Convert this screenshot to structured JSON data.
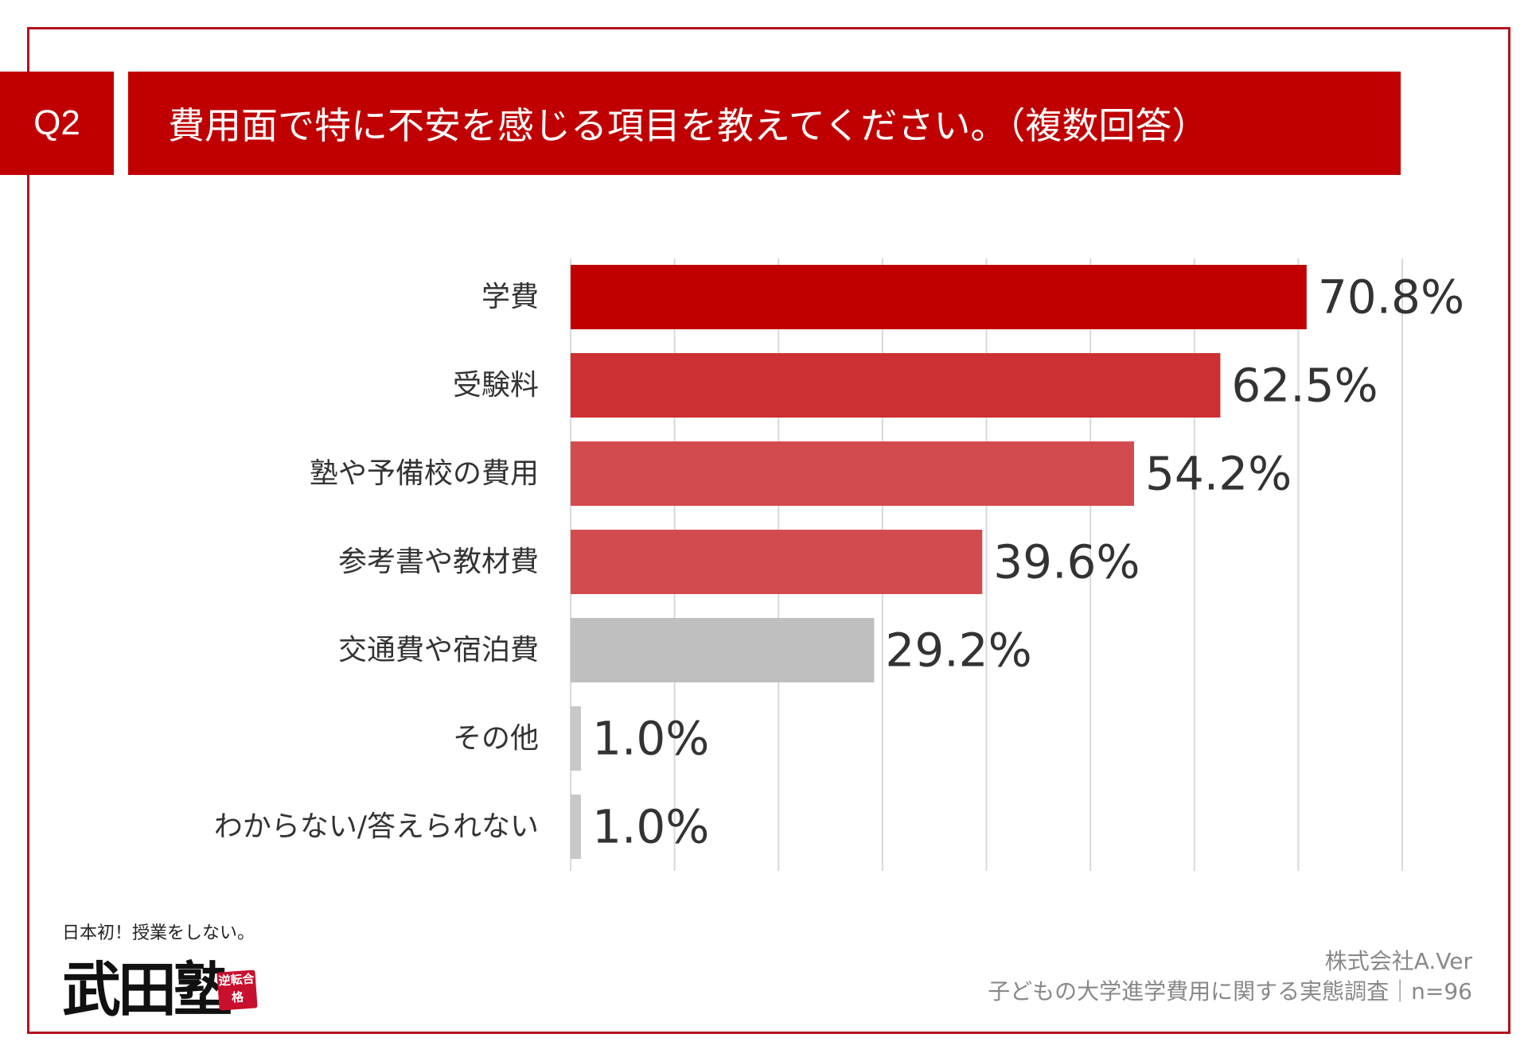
{
  "header": {
    "badge": "Q2",
    "title": "費用面で特に不安を感じる項目を教えてください。（複数回答）"
  },
  "colors": {
    "accent": "#c00000",
    "frame": "#b5121b",
    "grid": "#d9d9d9"
  },
  "chart_data": {
    "type": "bar",
    "orientation": "horizontal",
    "categories": [
      "学費",
      "受験料",
      "塾や予備校の費用",
      "参考書や教材費",
      "交通費や宿泊費",
      "その他",
      "わからない/答えられない"
    ],
    "values": [
      70.8,
      62.5,
      54.2,
      39.6,
      29.2,
      1.0,
      1.0
    ],
    "value_labels": [
      "70.8%",
      "62.5%",
      "54.2%",
      "39.6%",
      "29.2%",
      "1.0%",
      "1.0%"
    ],
    "bar_colors": [
      "#c00000",
      "#cd2f33",
      "#d44b4f",
      "#d44b4f",
      "#bfbfbf",
      "#c8c8c8",
      "#c8c8c8"
    ],
    "xlim": [
      0,
      80
    ],
    "grid": true,
    "legend": "none"
  },
  "footer": {
    "company": "株式会社A.Ver",
    "survey": "子どもの大学進学費用に関する実態調査｜n=96"
  },
  "logo": {
    "tagline": "日本初！授業をしない。",
    "name": "武田塾",
    "stamp": "逆転合格"
  }
}
